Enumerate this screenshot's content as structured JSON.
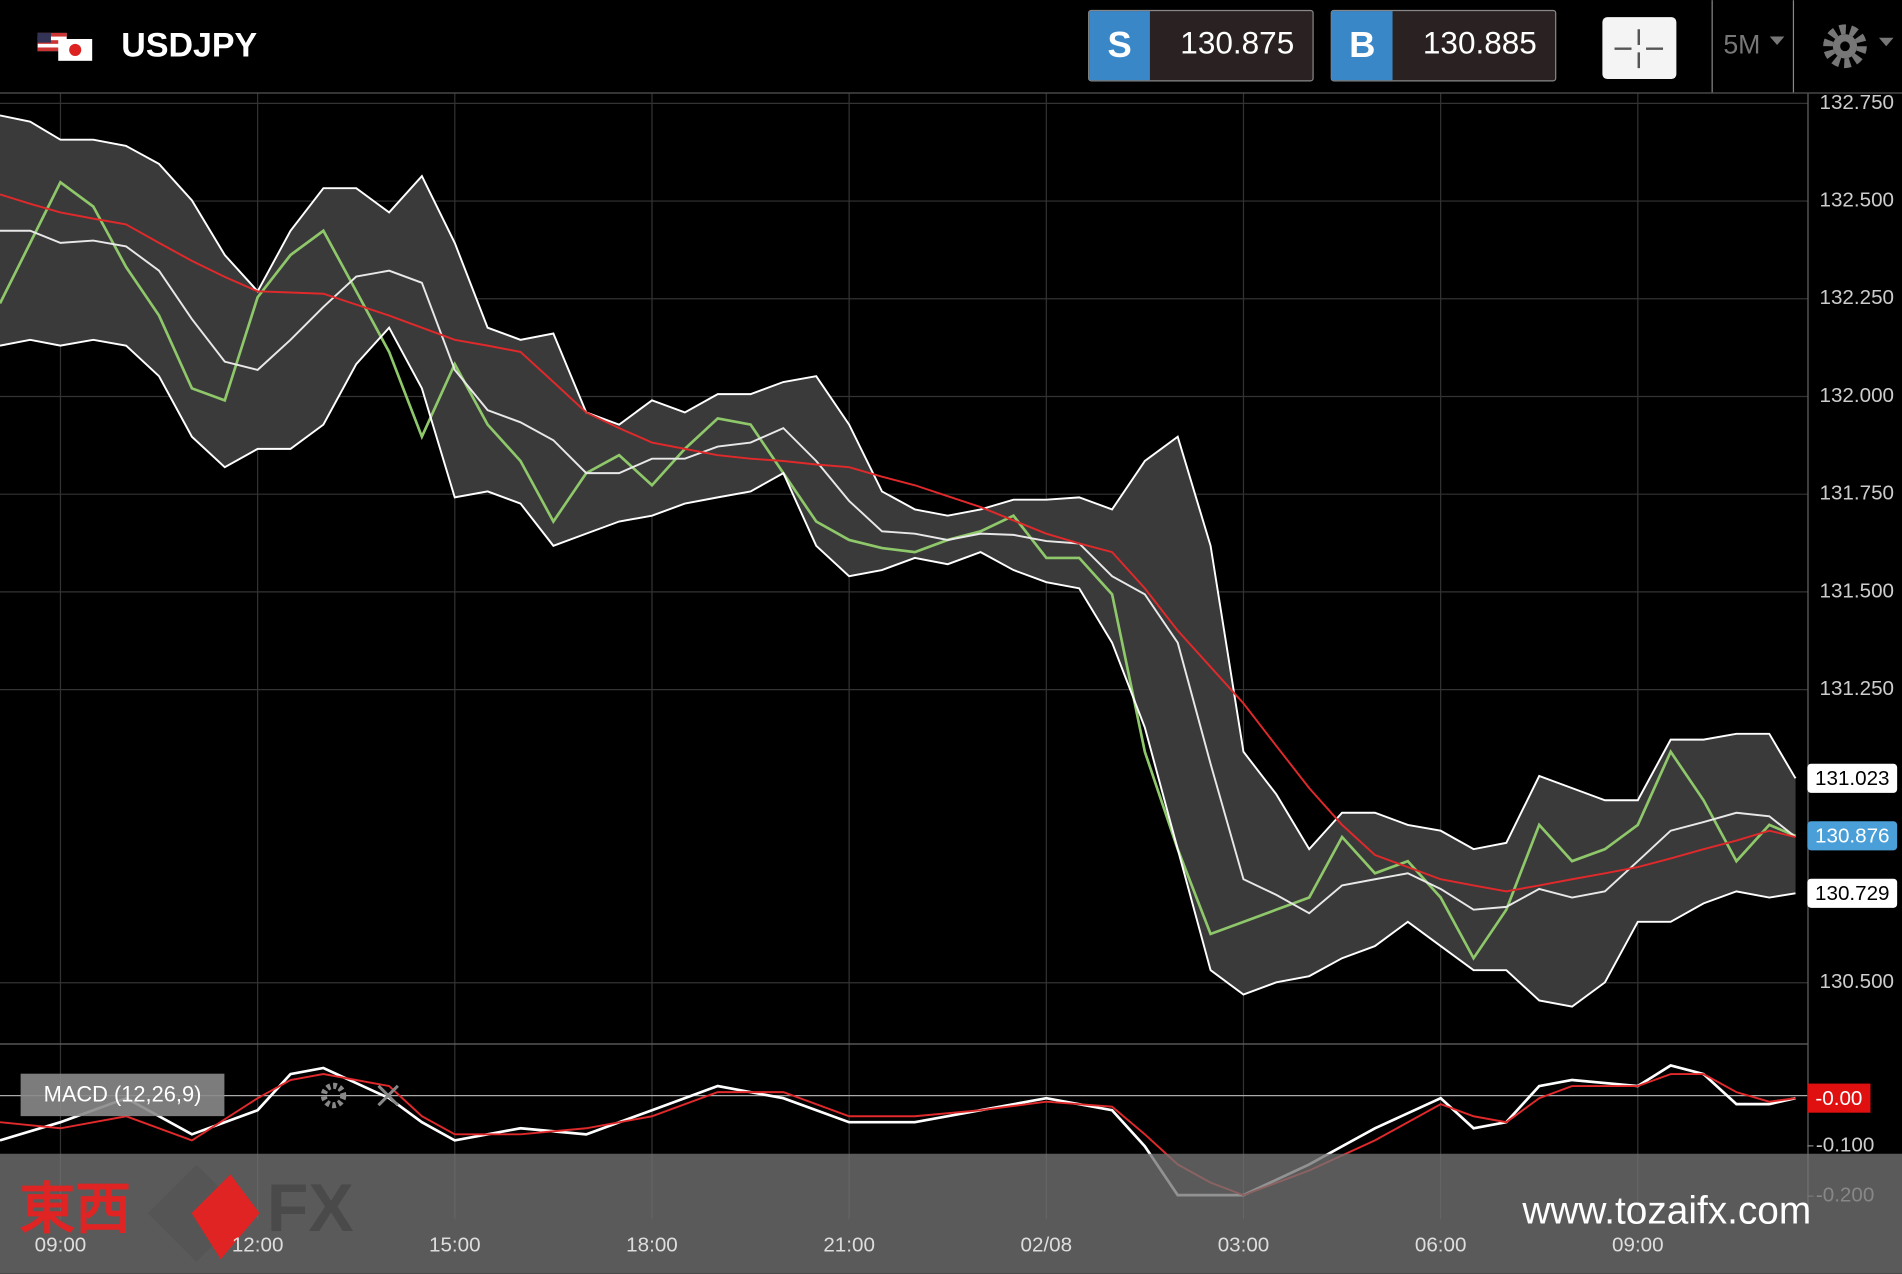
{
  "header": {
    "symbol": "USDJPY",
    "sell_label": "S",
    "sell": 130.875,
    "buy_label": "B",
    "buy": 130.885,
    "interval": "5M"
  },
  "watermark": {
    "brand_cjk": "東西",
    "brand": "FX",
    "url": "www.tozaifx.com"
  },
  "chart_data": [
    {
      "type": "line",
      "x": [
        -0.92,
        -0.46,
        0,
        0.5,
        1,
        1.5,
        2,
        2.5,
        3,
        3.5,
        4,
        4.5,
        5,
        5.5,
        6,
        6.5,
        7,
        7.5,
        8,
        8.5,
        9,
        9.5,
        10,
        10.5,
        11,
        11.5,
        12,
        12.5,
        13,
        13.5,
        14,
        14.5,
        15,
        15.5,
        16,
        16.5,
        17,
        17.5,
        18,
        18.5,
        19,
        19.5,
        20,
        20.5,
        21,
        21.5,
        22,
        22.5,
        23,
        23.5,
        24,
        24.5,
        25,
        25.5,
        26,
        26.4
      ],
      "series": [
        {
          "color": "#8fc86a",
          "values": [
            132.238,
            132.393,
            132.548,
            132.486,
            132.331,
            132.207,
            132.021,
            131.99,
            132.254,
            132.362,
            132.424,
            132.269,
            132.114,
            131.897,
            132.083,
            131.928,
            131.835,
            131.68,
            131.804,
            131.85,
            131.773,
            131.866,
            131.944,
            131.928,
            131.804,
            131.68,
            131.633,
            131.612,
            131.602,
            131.633,
            131.655,
            131.695,
            131.587,
            131.587,
            131.494,
            131.091,
            130.842,
            130.625,
            130.656,
            130.687,
            130.718,
            130.873,
            130.78,
            130.811,
            130.718,
            130.563,
            130.687,
            130.904,
            130.811,
            130.842,
            130.904,
            131.091,
            130.967,
            130.811,
            130.904,
            130.876
          ]
        },
        {
          "color": "#ffffff",
          "values": [
            132.719,
            132.703,
            132.657,
            132.657,
            132.641,
            132.595,
            132.502,
            132.362,
            132.269,
            132.424,
            132.533,
            132.533,
            132.471,
            132.564,
            132.393,
            132.176,
            132.145,
            132.161,
            131.959,
            131.928,
            131.99,
            131.959,
            132.006,
            132.006,
            132.037,
            132.052,
            131.928,
            131.757,
            131.711,
            131.695,
            131.711,
            131.736,
            131.736,
            131.742,
            131.711,
            131.835,
            131.897,
            131.618,
            131.091,
            130.982,
            130.842,
            130.935,
            130.935,
            130.904,
            130.889,
            130.842,
            130.858,
            131.029,
            130.998,
            130.967,
            130.967,
            131.122,
            131.122,
            131.137,
            131.137,
            131.023
          ]
        },
        {
          "color": "#ffffff",
          "values": [
            132.13,
            132.145,
            132.13,
            132.145,
            132.13,
            132.052,
            131.897,
            131.819,
            131.866,
            131.866,
            131.928,
            132.083,
            132.176,
            132.021,
            131.742,
            131.757,
            131.726,
            131.618,
            131.649,
            131.68,
            131.695,
            131.726,
            131.742,
            131.757,
            131.804,
            131.618,
            131.54,
            131.556,
            131.587,
            131.571,
            131.602,
            131.556,
            131.525,
            131.509,
            131.37,
            131.153,
            130.842,
            130.532,
            130.47,
            130.501,
            130.517,
            130.563,
            130.594,
            130.656,
            130.594,
            130.532,
            130.532,
            130.455,
            130.439,
            130.501,
            130.656,
            130.656,
            130.703,
            130.734,
            130.718,
            130.729
          ]
        },
        {
          "color": "#e8e8e8",
          "values": [
            132.424,
            132.424,
            132.393,
            132.399,
            132.384,
            132.322,
            132.198,
            132.089,
            132.068,
            132.145,
            132.229,
            132.307,
            132.322,
            132.291,
            132.068,
            131.965,
            131.934,
            131.888,
            131.804,
            131.804,
            131.841,
            131.841,
            131.872,
            131.882,
            131.919,
            131.835,
            131.733,
            131.655,
            131.649,
            131.633,
            131.649,
            131.646,
            131.63,
            131.624,
            131.54,
            131.494,
            131.37,
            131.06,
            130.765,
            130.725,
            130.678,
            130.749,
            130.765,
            130.78,
            130.74,
            130.687,
            130.694,
            130.74,
            130.718,
            130.734,
            130.811,
            130.889,
            130.911,
            130.935,
            130.926,
            130.873
          ]
        },
        {
          "color": "#e0292b",
          "values": [
            132.517,
            132.493,
            132.471,
            132.455,
            132.44,
            132.393,
            132.347,
            132.306,
            132.269,
            132.266,
            132.263,
            132.235,
            132.207,
            132.176,
            132.145,
            132.13,
            132.114,
            132.037,
            131.959,
            131.919,
            131.882,
            131.866,
            131.85,
            131.841,
            131.835,
            131.826,
            131.819,
            131.795,
            131.773,
            131.745,
            131.717,
            131.683,
            131.649,
            131.624,
            131.602,
            131.509,
            131.401,
            131.308,
            131.215,
            131.106,
            130.998,
            130.904,
            130.827,
            130.796,
            130.765,
            130.749,
            130.734,
            130.749,
            130.765,
            130.78,
            130.796,
            130.818,
            130.842,
            130.864,
            130.889,
            130.873
          ]
        }
      ],
      "band_fill": "#3a3a3a",
      "tag_colors": [
        "#4a9fd8",
        "#ffffff",
        "#ffffff"
      ],
      "xlim": [
        -0.92,
        26.58
      ],
      "xticks": [
        {
          "value": 0,
          "label": "09:00"
        },
        {
          "value": 3,
          "label": "12:00"
        },
        {
          "value": 6,
          "label": "15:00"
        },
        {
          "value": 9,
          "label": "18:00"
        },
        {
          "value": 12,
          "label": "21:00"
        },
        {
          "value": 15,
          "label": "02/08"
        },
        {
          "value": 18,
          "label": "03:00"
        },
        {
          "value": 21,
          "label": "06:00"
        },
        {
          "value": 24,
          "label": "09:00"
        }
      ],
      "ylim": [
        130.345,
        132.775
      ],
      "yticks": [
        {
          "value": 132.75,
          "label": "132.750"
        },
        {
          "value": 132.5,
          "label": "132.500"
        },
        {
          "value": 132.25,
          "label": "132.250"
        },
        {
          "value": 132,
          "label": "132.000"
        },
        {
          "value": 131.75,
          "label": "131.750"
        },
        {
          "value": 131.5,
          "label": "131.500"
        },
        {
          "value": 131.25,
          "label": "131.250"
        },
        {
          "value": 130.5,
          "label": "130.500"
        }
      ],
      "grid": true
    },
    {
      "type": "line",
      "title": "MACD (12,26,9)",
      "x": [
        -0.92,
        0,
        1,
        2,
        3,
        3.5,
        4,
        5,
        5.5,
        6,
        7,
        8,
        9,
        10,
        11,
        12,
        13,
        14,
        15,
        16,
        16.5,
        17,
        17.5,
        18,
        19,
        20,
        21,
        21.5,
        22,
        22.5,
        23,
        24,
        24.5,
        25,
        25.5,
        26,
        26.4
      ],
      "series": [
        {
          "color": "#ffffff",
          "values": [
            -0.089,
            -0.053,
            -0.005,
            -0.077,
            -0.029,
            0.043,
            0.055,
            -0.005,
            -0.053,
            -0.089,
            -0.065,
            -0.077,
            -0.029,
            0.019,
            -0.005,
            -0.053,
            -0.053,
            -0.029,
            -0.005,
            -0.029,
            -0.101,
            -0.198,
            -0.198,
            -0.198,
            -0.137,
            -0.065,
            -0.005,
            -0.065,
            -0.053,
            0.019,
            0.031,
            0.019,
            0.06,
            0.043,
            -0.017,
            -0.017,
            -0.005
          ]
        },
        {
          "color": "#e0292b",
          "values": [
            -0.053,
            -0.065,
            -0.041,
            -0.089,
            -0.005,
            0.031,
            0.043,
            0.019,
            -0.041,
            -0.077,
            -0.077,
            -0.065,
            -0.041,
            0.007,
            0.007,
            -0.041,
            -0.041,
            -0.029,
            -0.012,
            -0.022,
            -0.077,
            -0.137,
            -0.173,
            -0.198,
            -0.149,
            -0.089,
            -0.017,
            -0.041,
            -0.053,
            -0.005,
            0.019,
            0.019,
            0.043,
            0.043,
            0.007,
            -0.012,
            -0.005
          ]
        }
      ],
      "last_value_label": "-0.00",
      "tag_color": "#e01010",
      "xlim": [
        -0.92,
        26.58
      ],
      "ylim": [
        -0.246,
        0.104
      ],
      "yticks": [
        {
          "value": -0.1,
          "label": "-0.100"
        },
        {
          "value": -0.2,
          "label": "-0.200"
        }
      ]
    }
  ]
}
